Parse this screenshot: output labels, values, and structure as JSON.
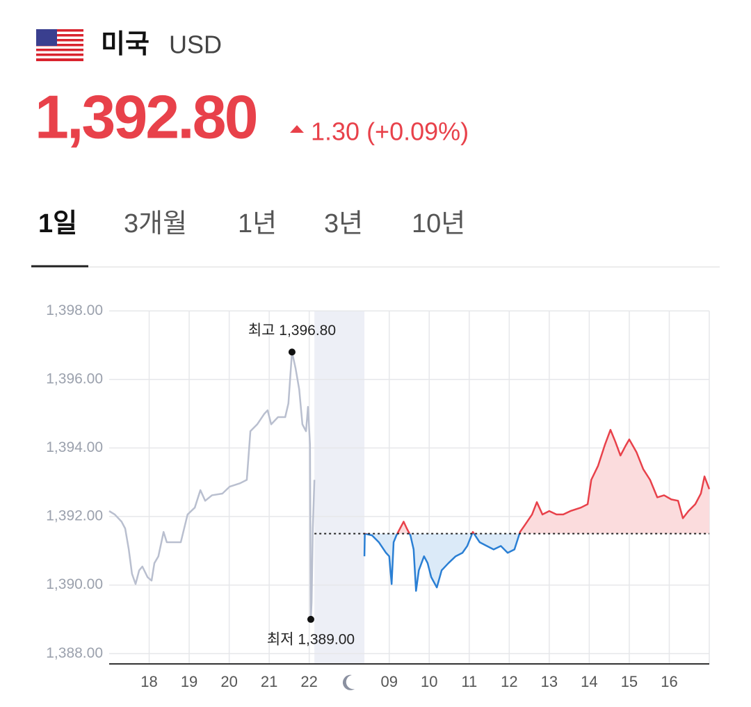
{
  "header": {
    "country": "미국",
    "currency": "USD",
    "price": "1,392.80",
    "change": "1.30 (+0.09%)"
  },
  "tabs": [
    "1일",
    "3개월",
    "1년",
    "3년",
    "10년"
  ],
  "chart_data": {
    "type": "line",
    "ylim": [
      1387.7,
      1398.0
    ],
    "yticks": [
      {
        "value": 1388,
        "label": "1,388.00"
      },
      {
        "value": 1390,
        "label": "1,390.00"
      },
      {
        "value": 1392,
        "label": "1,392.00"
      },
      {
        "value": 1394,
        "label": "1,394.00"
      },
      {
        "value": 1396,
        "label": "1,396.00"
      },
      {
        "value": 1398,
        "label": "1,398.00"
      }
    ],
    "xlim": [
      -1,
      14
    ],
    "xticks": [
      {
        "value": 0,
        "label": "18"
      },
      {
        "value": 1,
        "label": "19"
      },
      {
        "value": 2,
        "label": "20"
      },
      {
        "value": 3,
        "label": "21"
      },
      {
        "value": 4,
        "label": "22"
      },
      {
        "value": 6,
        "label": "09"
      },
      {
        "value": 7,
        "label": "10"
      },
      {
        "value": 8,
        "label": "11"
      },
      {
        "value": 9,
        "label": "12"
      },
      {
        "value": 10,
        "label": "13"
      },
      {
        "value": 11,
        "label": "14"
      },
      {
        "value": 12,
        "label": "15"
      },
      {
        "value": 13,
        "label": "16"
      }
    ],
    "grid": true,
    "night_band": [
      4.13,
      5.38
    ],
    "baseline": {
      "value": 1391.5,
      "x": [
        4.13,
        14
      ]
    },
    "series": [
      {
        "color": "#b9bfcf",
        "x": [
          -1.0,
          -0.86,
          -0.69,
          -0.6,
          -0.51,
          -0.43,
          -0.34,
          -0.25,
          -0.17,
          -0.04,
          0.06,
          0.13,
          0.23,
          0.36,
          0.44,
          0.58,
          0.79,
          0.96,
          1.14,
          1.28,
          1.4,
          1.57,
          1.83,
          2.01,
          2.27,
          2.44,
          2.53,
          2.7,
          2.88,
          2.96,
          3.05,
          3.22,
          3.4,
          3.48,
          3.57,
          3.66,
          3.75,
          3.83,
          3.92,
          3.97,
          4.02,
          4.04,
          4.06,
          4.09,
          4.13
        ],
        "values": [
          1392.16,
          1392.06,
          1391.85,
          1391.65,
          1391.04,
          1390.33,
          1390.03,
          1390.43,
          1390.54,
          1390.23,
          1390.13,
          1390.64,
          1390.84,
          1391.55,
          1391.25,
          1391.25,
          1391.25,
          1392.06,
          1392.26,
          1392.77,
          1392.46,
          1392.62,
          1392.67,
          1392.87,
          1392.97,
          1393.07,
          1394.49,
          1394.69,
          1395.0,
          1395.1,
          1394.69,
          1394.9,
          1394.9,
          1395.3,
          1396.8,
          1396.32,
          1395.71,
          1394.69,
          1394.49,
          1395.2,
          1394.09,
          1389.0,
          1389.5,
          1391.65,
          1393.07
        ]
      },
      {
        "color_up": "#e8414a",
        "color_down": "#2a7fd4",
        "fill_up": "#fbdcdd",
        "fill_down": "#dbeaf8",
        "x": [
          5.38,
          5.39,
          5.57,
          5.74,
          5.92,
          6.0,
          6.06,
          6.11,
          6.18,
          6.27,
          6.36,
          6.44,
          6.53,
          6.61,
          6.67,
          6.74,
          6.87,
          6.96,
          7.05,
          7.19,
          7.31,
          7.48,
          7.66,
          7.83,
          7.95,
          8.09,
          8.26,
          8.44,
          8.61,
          8.79,
          8.96,
          9.13,
          9.27,
          9.39,
          9.57,
          9.69,
          9.83,
          10.0,
          10.18,
          10.35,
          10.53,
          10.79,
          10.96,
          11.05,
          11.22,
          11.39,
          11.53,
          11.65,
          11.78,
          11.92,
          12.0,
          12.18,
          12.35,
          12.52,
          12.7,
          12.87,
          13.05,
          13.22,
          13.34,
          13.48,
          13.65,
          13.79,
          13.88,
          14.0
        ],
        "values": [
          1390.84,
          1391.5,
          1391.45,
          1391.25,
          1390.94,
          1390.84,
          1390.03,
          1391.25,
          1391.45,
          1391.65,
          1391.85,
          1391.65,
          1391.45,
          1391.04,
          1389.83,
          1390.43,
          1390.84,
          1390.64,
          1390.23,
          1389.93,
          1390.43,
          1390.64,
          1390.84,
          1390.94,
          1391.14,
          1391.55,
          1391.25,
          1391.14,
          1391.04,
          1391.14,
          1390.94,
          1391.04,
          1391.55,
          1391.75,
          1392.06,
          1392.42,
          1392.06,
          1392.16,
          1392.06,
          1392.06,
          1392.16,
          1392.26,
          1392.36,
          1393.07,
          1393.48,
          1394.09,
          1394.53,
          1394.19,
          1393.78,
          1394.09,
          1394.25,
          1393.88,
          1393.38,
          1393.07,
          1392.56,
          1392.62,
          1392.5,
          1392.46,
          1391.95,
          1392.16,
          1392.36,
          1392.67,
          1393.17,
          1392.8
        ]
      }
    ],
    "annotations": [
      {
        "text": "최고 1,396.80",
        "x": 3.57,
        "value": 1396.8,
        "position": "above"
      },
      {
        "text": "최저 1,389.00",
        "x": 4.04,
        "value": 1389.0,
        "position": "below"
      }
    ]
  }
}
